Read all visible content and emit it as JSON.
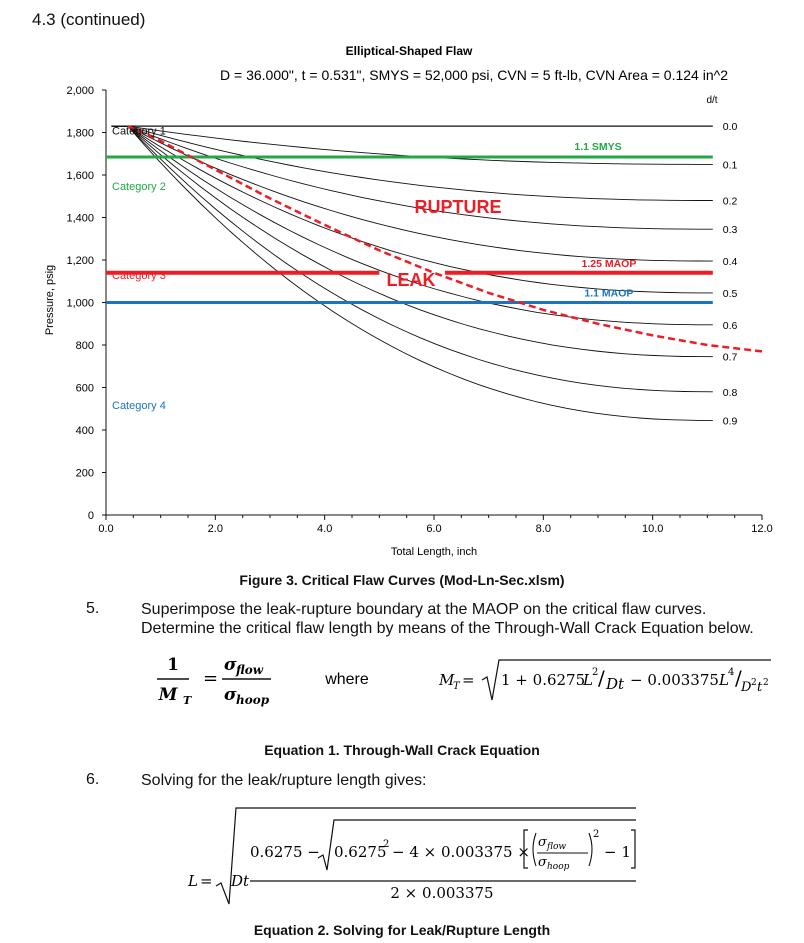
{
  "section_heading": "4.3 (continued)",
  "chart_data": {
    "type": "line",
    "title": "Elliptical-Shaped Flaw",
    "subtitle": "D = 36.000\",  t = 0.531\",  SMYS = 52,000 psi,  CVN = 5 ft-lb,  CVN Area = 0.124 in^2",
    "xlabel": "Total Length, inch",
    "ylabel": "Pressure, psig",
    "xlim": [
      0,
      12
    ],
    "ylim": [
      0,
      2000
    ],
    "x_ticks": [
      "0.0",
      "2.0",
      "4.0",
      "6.0",
      "8.0",
      "10.0",
      "12.0"
    ],
    "y_ticks": [
      "0",
      "200",
      "400",
      "600",
      "800",
      "1,000",
      "1,200",
      "1,400",
      "1,600",
      "1,800",
      "2,000"
    ],
    "dt_header": "d/t",
    "dt_labels": [
      "0.0",
      "0.1",
      "0.2",
      "0.3",
      "0.4",
      "0.5",
      "0.6",
      "0.7",
      "0.8",
      "0.9"
    ],
    "dt_curves_end_pressure": [
      1830,
      1650,
      1480,
      1345,
      1195,
      1045,
      895,
      745,
      580,
      445
    ],
    "critical_curve_start": [
      0.4,
      1830
    ],
    "curve_x_end": 11.1,
    "reference_lines": [
      {
        "label": "1.1 SMYS",
        "y": 1685,
        "color": "#22a848"
      },
      {
        "label": "1.25 MAOP",
        "y": 1140,
        "color": "#ee1c24"
      },
      {
        "label": "1.1 MAOP",
        "y": 1000,
        "color": "#1c75bc"
      }
    ],
    "leak_rupture_boundary": {
      "style": "dashed",
      "color": "#ee1c24",
      "points": [
        [
          0.4,
          1830
        ],
        [
          1,
          1760
        ],
        [
          2,
          1625
        ],
        [
          3,
          1490
        ],
        [
          4,
          1365
        ],
        [
          5,
          1245
        ],
        [
          6,
          1140
        ],
        [
          7,
          1045
        ],
        [
          8,
          965
        ],
        [
          9,
          900
        ],
        [
          10,
          845
        ],
        [
          11,
          800
        ],
        [
          12,
          770
        ]
      ]
    },
    "region_labels": {
      "rupture": "RUPTURE",
      "leak": "LEAK"
    },
    "categories": [
      {
        "label": "Category 1",
        "color": "#111111"
      },
      {
        "label": "Category 2",
        "color": "#22a848"
      },
      {
        "label": "Category 3",
        "color": "#ee1c24"
      },
      {
        "label": "Category 4",
        "color": "#1c75bc"
      }
    ]
  },
  "figure_caption": "Figure 3.  Critical Flaw Curves (Mod-Ln-Sec.xlsm)",
  "steps": [
    {
      "number": "5.",
      "text_line1": "Superimpose the leak-rupture boundary at the MAOP on the critical flaw curves.",
      "text_line2": "Determine the critical flaw length by means of the Through-Wall Crack Equation below."
    },
    {
      "number": "6.",
      "text_line1": "Solving for the leak/rupture length gives:"
    }
  ],
  "equation1": {
    "lhs_num": "1",
    "lhs_den": "M",
    "lhs_den_sub": "T",
    "rhs_num": "σ",
    "rhs_num_sub": "flow",
    "rhs_den": "σ",
    "rhs_den_sub": "hoop",
    "where": "where",
    "mt_lhs": "M",
    "mt_lhs_sub": "T",
    "mt_body_1": "1 + 0.6275",
    "mt_L2": "L",
    "mt_L2_exp": "2",
    "mt_Dt": "Dt",
    "mt_minus": "− 0.003375",
    "mt_L4": "L",
    "mt_L4_exp": "4",
    "mt_D2t2": "D",
    "mt_D2t2_exp": "2",
    "mt_t": "t",
    "mt_t_exp": "2",
    "caption": "Equation 1.  Through-Wall Crack Equation"
  },
  "equation2": {
    "lhs": "L",
    "Dt": "Dt",
    "num_a": "0.6275 −",
    "num_b": "0.6275",
    "num_b_exp": "2",
    "num_c": "− 4 × 0.003375 ×",
    "flow": "flow",
    "hoop": "hoop",
    "sigma": "σ",
    "exp2": "2",
    "minus1": "− 1",
    "den": "2 × 0.003375",
    "caption": "Equation 2.  Solving for Leak/Rupture Length"
  }
}
